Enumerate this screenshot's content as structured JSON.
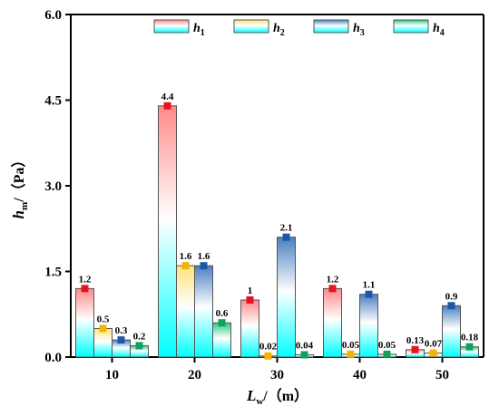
{
  "chart_data": {
    "type": "bar",
    "categories": [
      "10",
      "20",
      "30",
      "40",
      "50"
    ],
    "series": [
      {
        "name": "h1",
        "name_main": "h",
        "name_sub": "1",
        "values": [
          1.2,
          4.4,
          1.0,
          1.2,
          0.13
        ],
        "labels": [
          "1.2",
          "4.4",
          "1",
          "1.2",
          "0.13"
        ],
        "top_color": "#ff8a8a",
        "marker_color": "#e8141d"
      },
      {
        "name": "h2",
        "name_main": "h",
        "name_sub": "2",
        "values": [
          0.5,
          1.6,
          0.02,
          0.05,
          0.07
        ],
        "labels": [
          "0.5",
          "1.6",
          "0.02",
          "0.05",
          "0.07"
        ],
        "top_color": "#ffe27a",
        "marker_color": "#f2b400"
      },
      {
        "name": "h3",
        "name_main": "h",
        "name_sub": "3",
        "values": [
          0.3,
          1.6,
          2.1,
          1.1,
          0.9
        ],
        "labels": [
          "0.3",
          "1.6",
          "2.1",
          "1.1",
          "0.9"
        ],
        "top_color": "#4a7fc0",
        "marker_color": "#1f57a8"
      },
      {
        "name": "h4",
        "name_main": "h",
        "name_sub": "4",
        "values": [
          0.2,
          0.6,
          0.04,
          0.05,
          0.18
        ],
        "labels": [
          "0.2",
          "0.6",
          "0.04",
          "0.05",
          "0.18"
        ],
        "top_color": "#27c987",
        "marker_color": "#12a05e"
      }
    ],
    "bottom_color": "#00ffff",
    "ylim": [
      0,
      6.0
    ],
    "yticks": [
      0,
      1.5,
      3.0,
      4.5,
      6.0
    ],
    "ytick_labels": [
      "0.0",
      "1.5",
      "3.0",
      "4.5",
      "6.0"
    ],
    "ylabel": {
      "main": "h",
      "sub": "m",
      "unit": "/（Pa）"
    },
    "xlabel": {
      "main": "L",
      "sub": "w",
      "unit": "/（m）"
    },
    "legend_position": "top"
  }
}
